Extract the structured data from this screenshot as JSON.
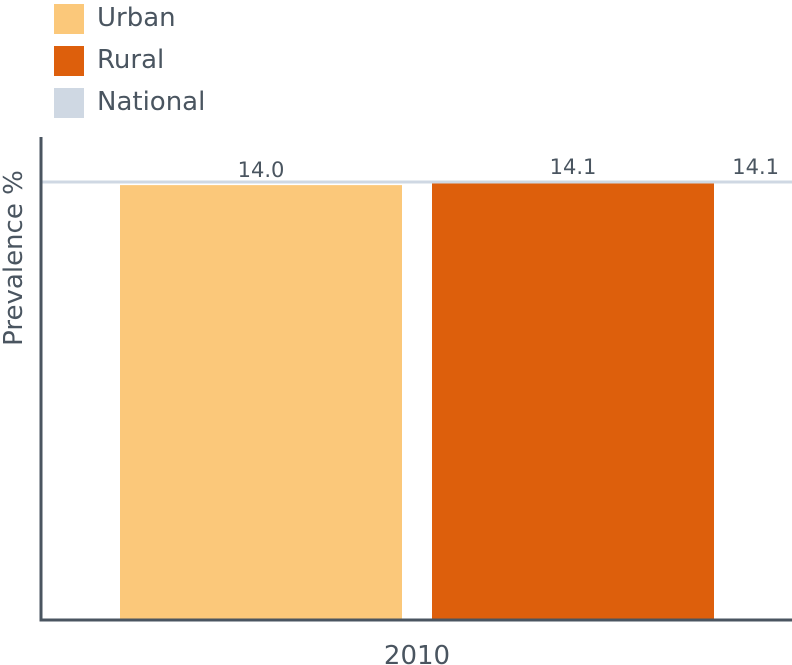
{
  "chart_data": {
    "type": "bar",
    "categories": [
      "2010"
    ],
    "series": [
      {
        "name": "Urban",
        "values": [
          14.0
        ],
        "color": "#fbc87a"
      },
      {
        "name": "Rural",
        "values": [
          14.1
        ],
        "color": "#dd5f0c"
      }
    ],
    "reference_line": {
      "name": "National",
      "value": 14.1,
      "label": "14.1",
      "color": "#cfd8e3"
    },
    "bar_labels": [
      "14.0",
      "14.1"
    ],
    "legend": [
      {
        "label": "Urban",
        "color": "#fbc87a"
      },
      {
        "label": "Rural",
        "color": "#dd5f0c"
      },
      {
        "label": "National",
        "color": "#cfd8e3"
      }
    ],
    "legend_position": "top-left",
    "xlabel": "",
    "ylabel": "Prevalence %",
    "ylim": [
      0,
      14.1
    ],
    "grid": false
  }
}
